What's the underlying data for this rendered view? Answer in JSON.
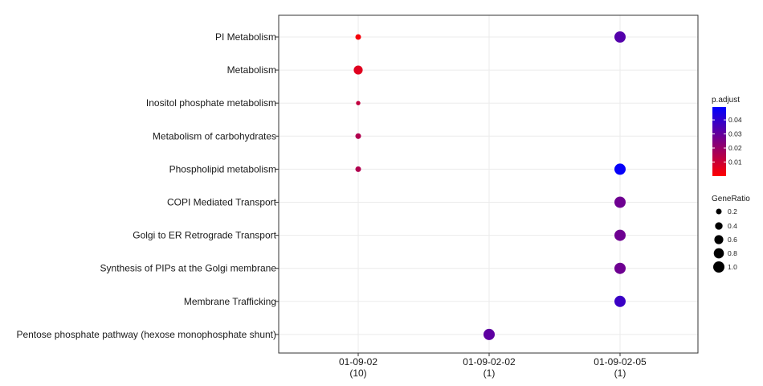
{
  "chart_data": {
    "type": "scatter",
    "title": "",
    "xlabel": "",
    "ylabel": "",
    "clusters": [
      {
        "label": "01-09-02",
        "count": "(10)"
      },
      {
        "label": "01-09-02-02",
        "count": "(1)"
      },
      {
        "label": "01-09-02-05",
        "count": "(1)"
      }
    ],
    "terms": [
      "PI Metabolism",
      "Metabolism",
      "Inositol phosphate metabolism",
      "Metabolism of carbohydrates",
      "Phospholipid metabolism",
      "COPI Mediated Transport",
      "Golgi to ER Retrograde Transport",
      "Synthesis of PIPs at the Golgi membrane",
      "Membrane Trafficking",
      "Pentose phosphate pathway (hexose monophosphate shunt)"
    ],
    "points": [
      {
        "cluster": 0,
        "term": 0,
        "gene_ratio": 0.2,
        "p_adjust": 0.002
      },
      {
        "cluster": 0,
        "term": 1,
        "gene_ratio": 0.6,
        "p_adjust": 0.006
      },
      {
        "cluster": 0,
        "term": 2,
        "gene_ratio": 0.1,
        "p_adjust": 0.012
      },
      {
        "cluster": 0,
        "term": 3,
        "gene_ratio": 0.2,
        "p_adjust": 0.015
      },
      {
        "cluster": 0,
        "term": 4,
        "gene_ratio": 0.2,
        "p_adjust": 0.015
      },
      {
        "cluster": 1,
        "term": 9,
        "gene_ratio": 1.0,
        "p_adjust": 0.031
      },
      {
        "cluster": 2,
        "term": 0,
        "gene_ratio": 1.0,
        "p_adjust": 0.033
      },
      {
        "cluster": 2,
        "term": 4,
        "gene_ratio": 1.0,
        "p_adjust": 0.048
      },
      {
        "cluster": 2,
        "term": 5,
        "gene_ratio": 1.0,
        "p_adjust": 0.028
      },
      {
        "cluster": 2,
        "term": 6,
        "gene_ratio": 1.0,
        "p_adjust": 0.028
      },
      {
        "cluster": 2,
        "term": 7,
        "gene_ratio": 1.0,
        "p_adjust": 0.028
      },
      {
        "cluster": 2,
        "term": 8,
        "gene_ratio": 1.0,
        "p_adjust": 0.038
      }
    ],
    "grid": true,
    "color_legend": {
      "title": "p.adjust",
      "min": 0.0,
      "max": 0.0492,
      "low_color": "#ff0000",
      "high_color": "#0000ff",
      "ticks": [
        0.01,
        0.02,
        0.03,
        0.04
      ],
      "tick_labels": [
        "0.01",
        "0.02",
        "0.03",
        "0.04"
      ]
    },
    "size_legend": {
      "title": "GeneRatio",
      "values": [
        0.2,
        0.4,
        0.6,
        0.8,
        1.0
      ],
      "labels": [
        "0.2",
        "0.4",
        "0.6",
        "0.8",
        "1.0"
      ]
    },
    "legend_position": "right"
  }
}
